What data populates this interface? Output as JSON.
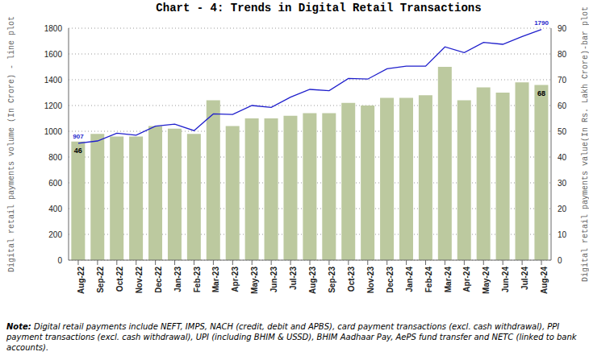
{
  "chart_data": {
    "type": "bar",
    "title": "Chart - 4: Trends in Digital Retail Transactions",
    "ylabel": "Digital retail payments volume (In Crore) - line plot",
    "y2label": "Digital retail payments value(In Rs. Lakh Crore)-bar plot",
    "categories": [
      "Aug-22",
      "Sep-22",
      "Oct-22",
      "Nov-22",
      "Dec-22",
      "Jan-23",
      "Feb-23",
      "Mar-23",
      "Apr-23",
      "May-23",
      "Jun-23",
      "Jul-23",
      "Aug-23",
      "Sep-23",
      "Oct-23",
      "Nov-23",
      "Dec-23",
      "Jan-24",
      "Feb-24",
      "Mar-24",
      "Apr-24",
      "May-24",
      "Jun-24",
      "Jul-24",
      "Aug-24"
    ],
    "series": [
      {
        "type": "bar",
        "axis": "y2",
        "color": "#bcc99f",
        "data_labels": true,
        "values": [
          46,
          49,
          48,
          48,
          52,
          51,
          49,
          62,
          52,
          55,
          55,
          56,
          57,
          57,
          61,
          60,
          63,
          63,
          64,
          75,
          62,
          67,
          65,
          69,
          68
        ],
        "value_labels": [
          "46",
          null,
          null,
          null,
          null,
          null,
          null,
          null,
          null,
          null,
          null,
          null,
          null,
          null,
          null,
          null,
          null,
          null,
          null,
          null,
          null,
          null,
          null,
          null,
          "68"
        ]
      },
      {
        "type": "line",
        "color": "#1f1fcc",
        "data_labels": true,
        "values": [
          907,
          925,
          985,
          970,
          1040,
          1055,
          1005,
          1135,
          1130,
          1200,
          1185,
          1265,
          1325,
          1315,
          1410,
          1405,
          1485,
          1505,
          1505,
          1655,
          1610,
          1690,
          1675,
          1735,
          1790
        ],
        "value_labels": [
          "907",
          null,
          null,
          null,
          null,
          null,
          null,
          null,
          null,
          null,
          null,
          null,
          null,
          null,
          null,
          null,
          null,
          null,
          null,
          null,
          null,
          null,
          null,
          null,
          "1790"
        ]
      }
    ],
    "ylim": [
      0,
      1800
    ],
    "yticks": [
      0,
      200,
      400,
      600,
      800,
      1000,
      1200,
      1400,
      1600,
      1800
    ],
    "y2lim": [
      0,
      90
    ],
    "y2ticks": [
      0,
      10,
      20,
      30,
      40,
      50,
      60,
      70,
      80,
      90
    ],
    "grid": true,
    "annotations": [
      {
        "label": "Note:",
        "text": "Digital retail payments include NEFT, IMPS, NACH (credit, debit and APBS), card payment transactions (excl. cash withdrawal), PPI payment transactions (excl. cash withdrawal), UPI (including BHIM & USSD), BHIM Aadhaar Pay, AePS fund transfer and NETC (linked to bank accounts)."
      }
    ]
  }
}
